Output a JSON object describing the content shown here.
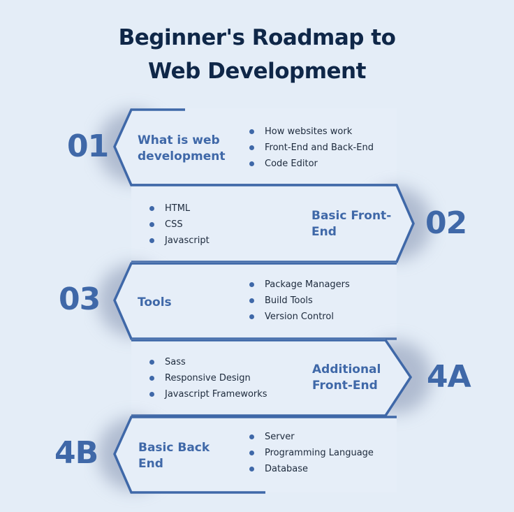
{
  "title": {
    "line1": "Beginner's Roadmap to",
    "line2": "Web Development"
  },
  "colors": {
    "background": "#e4edf7",
    "accent": "#3f68a8",
    "title": "#0f2748",
    "card": "#e6eef8"
  },
  "stages": [
    {
      "number": "01",
      "title": "What is web\ndevelopment",
      "items": [
        "How websites work",
        "Front-End and Back-End",
        "Code Editor"
      ]
    },
    {
      "number": "02",
      "title": "Basic Front-\nEnd",
      "items": [
        "HTML",
        "CSS",
        "Javascript"
      ]
    },
    {
      "number": "03",
      "title": "Tools",
      "items": [
        "Package Managers",
        "Build Tools",
        "Version Control"
      ]
    },
    {
      "number": "4A",
      "title": "Additional\nFront-End",
      "items": [
        "Sass",
        "Responsive Design",
        "Javascript Frameworks"
      ]
    },
    {
      "number": "4B",
      "title": "Basic Back\nEnd",
      "items": [
        "Server",
        "Programming Language",
        "Database"
      ]
    }
  ]
}
